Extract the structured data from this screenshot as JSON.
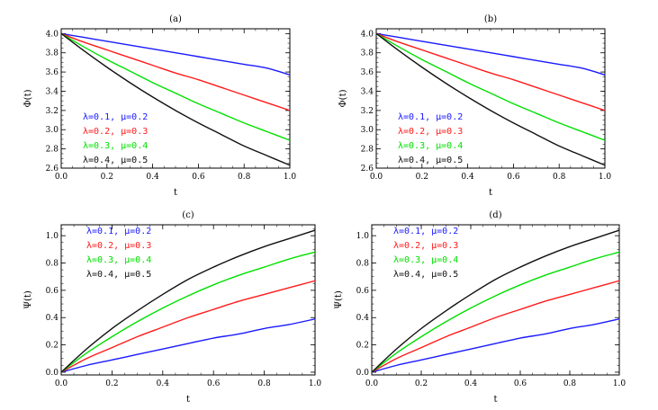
{
  "colors": {
    "blue": "#1a1aff",
    "red": "#ff1a1a",
    "green": "#00e000",
    "black": "#111111"
  },
  "legend_entries": [
    "λ=0.1,  μ=0.2",
    "λ=0.2,  μ=0.3",
    "λ=0.3,  μ=0.4",
    "λ=0.4,  μ=0.5"
  ],
  "chart_data": [
    {
      "type": "line",
      "title": "(a)",
      "xlabel": "t",
      "ylabel": "Φ(t)",
      "xlim": [
        0,
        1
      ],
      "ylim": [
        2.6,
        4.05
      ],
      "xticks": [
        "0.0",
        "0.2",
        "0.4",
        "0.6",
        "0.8",
        "1.0"
      ],
      "yticks": [
        "2.6",
        "2.8",
        "3.0",
        "3.2",
        "3.4",
        "3.6",
        "3.8",
        "4.0"
      ],
      "legend": "bottom-left",
      "x": [
        0,
        0.1,
        0.2,
        0.3,
        0.4,
        0.5,
        0.6,
        0.7,
        0.8,
        0.9,
        1.0
      ],
      "series": [
        {
          "name": "λ=0.1,  μ=0.2",
          "color": "blue",
          "values": [
            4.0,
            3.96,
            3.92,
            3.88,
            3.84,
            3.8,
            3.76,
            3.72,
            3.68,
            3.64,
            3.57
          ]
        },
        {
          "name": "λ=0.2,  μ=0.3",
          "color": "red",
          "values": [
            4.0,
            3.91,
            3.83,
            3.75,
            3.67,
            3.59,
            3.52,
            3.44,
            3.36,
            3.28,
            3.2
          ]
        },
        {
          "name": "λ=0.3,  μ=0.4",
          "color": "green",
          "values": [
            4.0,
            3.86,
            3.73,
            3.61,
            3.49,
            3.38,
            3.27,
            3.17,
            3.07,
            2.98,
            2.89
          ]
        },
        {
          "name": "λ=0.4,  μ=0.5",
          "color": "black",
          "values": [
            4.0,
            3.82,
            3.65,
            3.49,
            3.34,
            3.2,
            3.07,
            2.95,
            2.83,
            2.73,
            2.63
          ]
        }
      ]
    },
    {
      "type": "line",
      "title": "(b)",
      "xlabel": "t",
      "ylabel": "Φ(t)",
      "xlim": [
        0,
        1
      ],
      "ylim": [
        2.6,
        4.05
      ],
      "xticks": [
        "0.0",
        "0.2",
        "0.4",
        "0.6",
        "0.8",
        "1.0"
      ],
      "yticks": [
        "2.6",
        "2.8",
        "3.0",
        "3.2",
        "3.4",
        "3.6",
        "3.8",
        "4.0"
      ],
      "legend": "bottom-left",
      "x": [
        0,
        0.1,
        0.2,
        0.3,
        0.4,
        0.5,
        0.6,
        0.7,
        0.8,
        0.9,
        1.0
      ],
      "series": [
        {
          "name": "λ=0.1,  μ=0.2",
          "color": "blue",
          "values": [
            4.0,
            3.96,
            3.92,
            3.88,
            3.84,
            3.8,
            3.76,
            3.72,
            3.68,
            3.64,
            3.57
          ]
        },
        {
          "name": "λ=0.2,  μ=0.3",
          "color": "red",
          "values": [
            4.0,
            3.91,
            3.83,
            3.75,
            3.67,
            3.59,
            3.52,
            3.44,
            3.36,
            3.28,
            3.2
          ]
        },
        {
          "name": "λ=0.3,  μ=0.4",
          "color": "green",
          "values": [
            4.0,
            3.86,
            3.73,
            3.61,
            3.49,
            3.38,
            3.27,
            3.17,
            3.07,
            2.98,
            2.89
          ]
        },
        {
          "name": "λ=0.4,  μ=0.5",
          "color": "black",
          "values": [
            4.0,
            3.82,
            3.65,
            3.49,
            3.34,
            3.2,
            3.07,
            2.95,
            2.83,
            2.73,
            2.63
          ]
        }
      ]
    },
    {
      "type": "line",
      "title": "(c)",
      "xlabel": "t",
      "ylabel": "Ψ(t)",
      "xlim": [
        0,
        1
      ],
      "ylim": [
        -0.02,
        1.08
      ],
      "xticks": [
        "0.0",
        "0.2",
        "0.4",
        "0.6",
        "0.8",
        "1.0"
      ],
      "yticks": [
        "0.0",
        "0.2",
        "0.4",
        "0.6",
        "0.8",
        "1.0"
      ],
      "legend": "top-left",
      "x": [
        0,
        0.1,
        0.2,
        0.3,
        0.4,
        0.5,
        0.6,
        0.7,
        0.8,
        0.9,
        1.0
      ],
      "series": [
        {
          "name": "λ=0.1,  μ=0.2",
          "color": "blue",
          "values": [
            0.0,
            0.05,
            0.09,
            0.13,
            0.17,
            0.21,
            0.25,
            0.28,
            0.32,
            0.35,
            0.39
          ]
        },
        {
          "name": "λ=0.2,  μ=0.3",
          "color": "red",
          "values": [
            0.0,
            0.1,
            0.18,
            0.26,
            0.33,
            0.4,
            0.46,
            0.52,
            0.57,
            0.62,
            0.67
          ]
        },
        {
          "name": "λ=0.3,  μ=0.4",
          "color": "green",
          "values": [
            0.0,
            0.14,
            0.26,
            0.37,
            0.47,
            0.56,
            0.64,
            0.71,
            0.77,
            0.83,
            0.88
          ]
        },
        {
          "name": "λ=0.4,  μ=0.5",
          "color": "black",
          "values": [
            0.0,
            0.17,
            0.32,
            0.45,
            0.57,
            0.68,
            0.77,
            0.85,
            0.92,
            0.98,
            1.04
          ]
        }
      ]
    },
    {
      "type": "line",
      "title": "(d)",
      "xlabel": "t",
      "ylabel": "Ψ(t)",
      "xlim": [
        0,
        1
      ],
      "ylim": [
        -0.02,
        1.08
      ],
      "xticks": [
        "0.0",
        "0.2",
        "0.4",
        "0.6",
        "0.8",
        "1.0"
      ],
      "yticks": [
        "0.0",
        "0.2",
        "0.4",
        "0.6",
        "0.8",
        "1.0"
      ],
      "legend": "top-left",
      "x": [
        0,
        0.1,
        0.2,
        0.3,
        0.4,
        0.5,
        0.6,
        0.7,
        0.8,
        0.9,
        1.0
      ],
      "series": [
        {
          "name": "λ=0.1,  μ=0.2",
          "color": "blue",
          "values": [
            0.0,
            0.05,
            0.09,
            0.13,
            0.17,
            0.21,
            0.25,
            0.28,
            0.32,
            0.35,
            0.39
          ]
        },
        {
          "name": "λ=0.2,  μ=0.3",
          "color": "red",
          "values": [
            0.0,
            0.1,
            0.18,
            0.26,
            0.33,
            0.4,
            0.46,
            0.52,
            0.57,
            0.62,
            0.67
          ]
        },
        {
          "name": "λ=0.3,  μ=0.4",
          "color": "green",
          "values": [
            0.0,
            0.14,
            0.26,
            0.37,
            0.47,
            0.56,
            0.64,
            0.71,
            0.77,
            0.83,
            0.88
          ]
        },
        {
          "name": "λ=0.4,  μ=0.5",
          "color": "black",
          "values": [
            0.0,
            0.17,
            0.32,
            0.45,
            0.57,
            0.68,
            0.77,
            0.85,
            0.92,
            0.98,
            1.04
          ]
        }
      ]
    }
  ]
}
